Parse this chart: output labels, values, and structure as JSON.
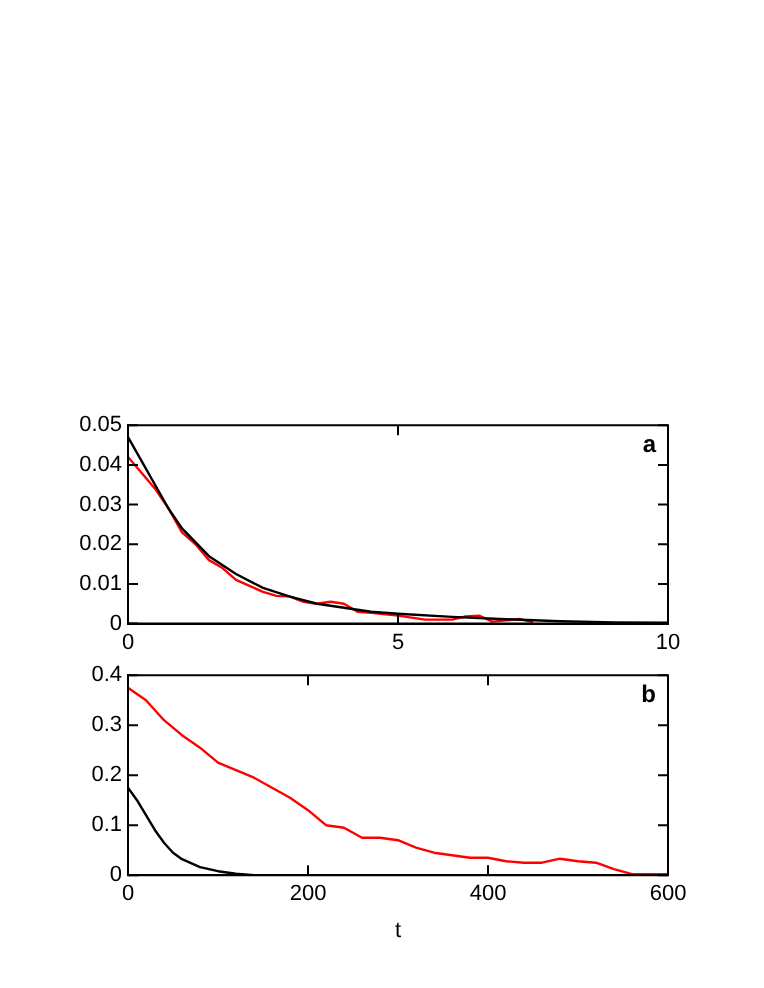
{
  "chart_data": [
    {
      "type": "line",
      "marker": "none",
      "annotations": [
        "a"
      ],
      "xlim": [
        0,
        10
      ],
      "xticks": [
        0,
        5,
        10
      ],
      "ylim": [
        0,
        0.05
      ],
      "yticks": [
        0,
        0.01,
        0.02,
        0.03,
        0.04,
        0.05
      ],
      "series": [
        {
          "color": "#000000",
          "x": [
            0,
            0.25,
            0.5,
            0.75,
            1,
            1.5,
            2,
            2.5,
            3,
            3.5,
            4,
            4.5,
            5,
            6,
            7,
            8,
            9,
            10
          ],
          "values": [
            0.047,
            0.041,
            0.035,
            0.029,
            0.024,
            0.017,
            0.0125,
            0.009,
            0.0068,
            0.005,
            0.004,
            0.003,
            0.0025,
            0.0017,
            0.0011,
            0.0006,
            0.0003,
            0.0002
          ]
        },
        {
          "color": "#ff0000",
          "x": [
            0,
            0.25,
            0.5,
            0.75,
            1,
            1.25,
            1.5,
            1.75,
            2,
            2.25,
            2.5,
            2.75,
            3,
            3.25,
            3.5,
            3.75,
            4,
            4.25,
            4.5,
            5,
            5.5,
            6,
            6.25,
            6.5,
            6.75,
            7,
            7.25,
            7.5
          ],
          "values": [
            0.042,
            0.038,
            0.034,
            0.029,
            0.023,
            0.02,
            0.016,
            0.014,
            0.011,
            0.0095,
            0.008,
            0.007,
            0.0068,
            0.0055,
            0.005,
            0.0055,
            0.005,
            0.003,
            0.0027,
            0.002,
            0.001,
            0.001,
            0.0018,
            0.002,
            0.0005,
            0.0008,
            0.0012,
            0.0003
          ]
        }
      ]
    },
    {
      "type": "line",
      "marker": "none",
      "annotations": [
        "b"
      ],
      "xlabel": "t",
      "xlim": [
        0,
        600
      ],
      "xticks": [
        0,
        200,
        400,
        600
      ],
      "ylim": [
        0,
        0.4
      ],
      "yticks": [
        0,
        0.1,
        0.2,
        0.3,
        0.4
      ],
      "series": [
        {
          "color": "#000000",
          "x": [
            0,
            10,
            20,
            30,
            40,
            50,
            60,
            80,
            100,
            120,
            140
          ],
          "values": [
            0.175,
            0.15,
            0.12,
            0.09,
            0.065,
            0.045,
            0.032,
            0.016,
            0.008,
            0.003,
            0
          ]
        },
        {
          "color": "#ff0000",
          "x": [
            0,
            20,
            40,
            60,
            80,
            100,
            120,
            140,
            160,
            180,
            200,
            220,
            240,
            260,
            280,
            300,
            320,
            340,
            360,
            380,
            400,
            420,
            440,
            460,
            480,
            500,
            520,
            540,
            560,
            580,
            600
          ],
          "values": [
            0.375,
            0.35,
            0.31,
            0.28,
            0.255,
            0.225,
            0.21,
            0.195,
            0.175,
            0.155,
            0.13,
            0.1,
            0.095,
            0.075,
            0.075,
            0.07,
            0.055,
            0.045,
            0.04,
            0.035,
            0.035,
            0.028,
            0.025,
            0.025,
            0.033,
            0.028,
            0.025,
            0.012,
            0.002,
            0.002,
            0.002
          ]
        }
      ]
    }
  ]
}
